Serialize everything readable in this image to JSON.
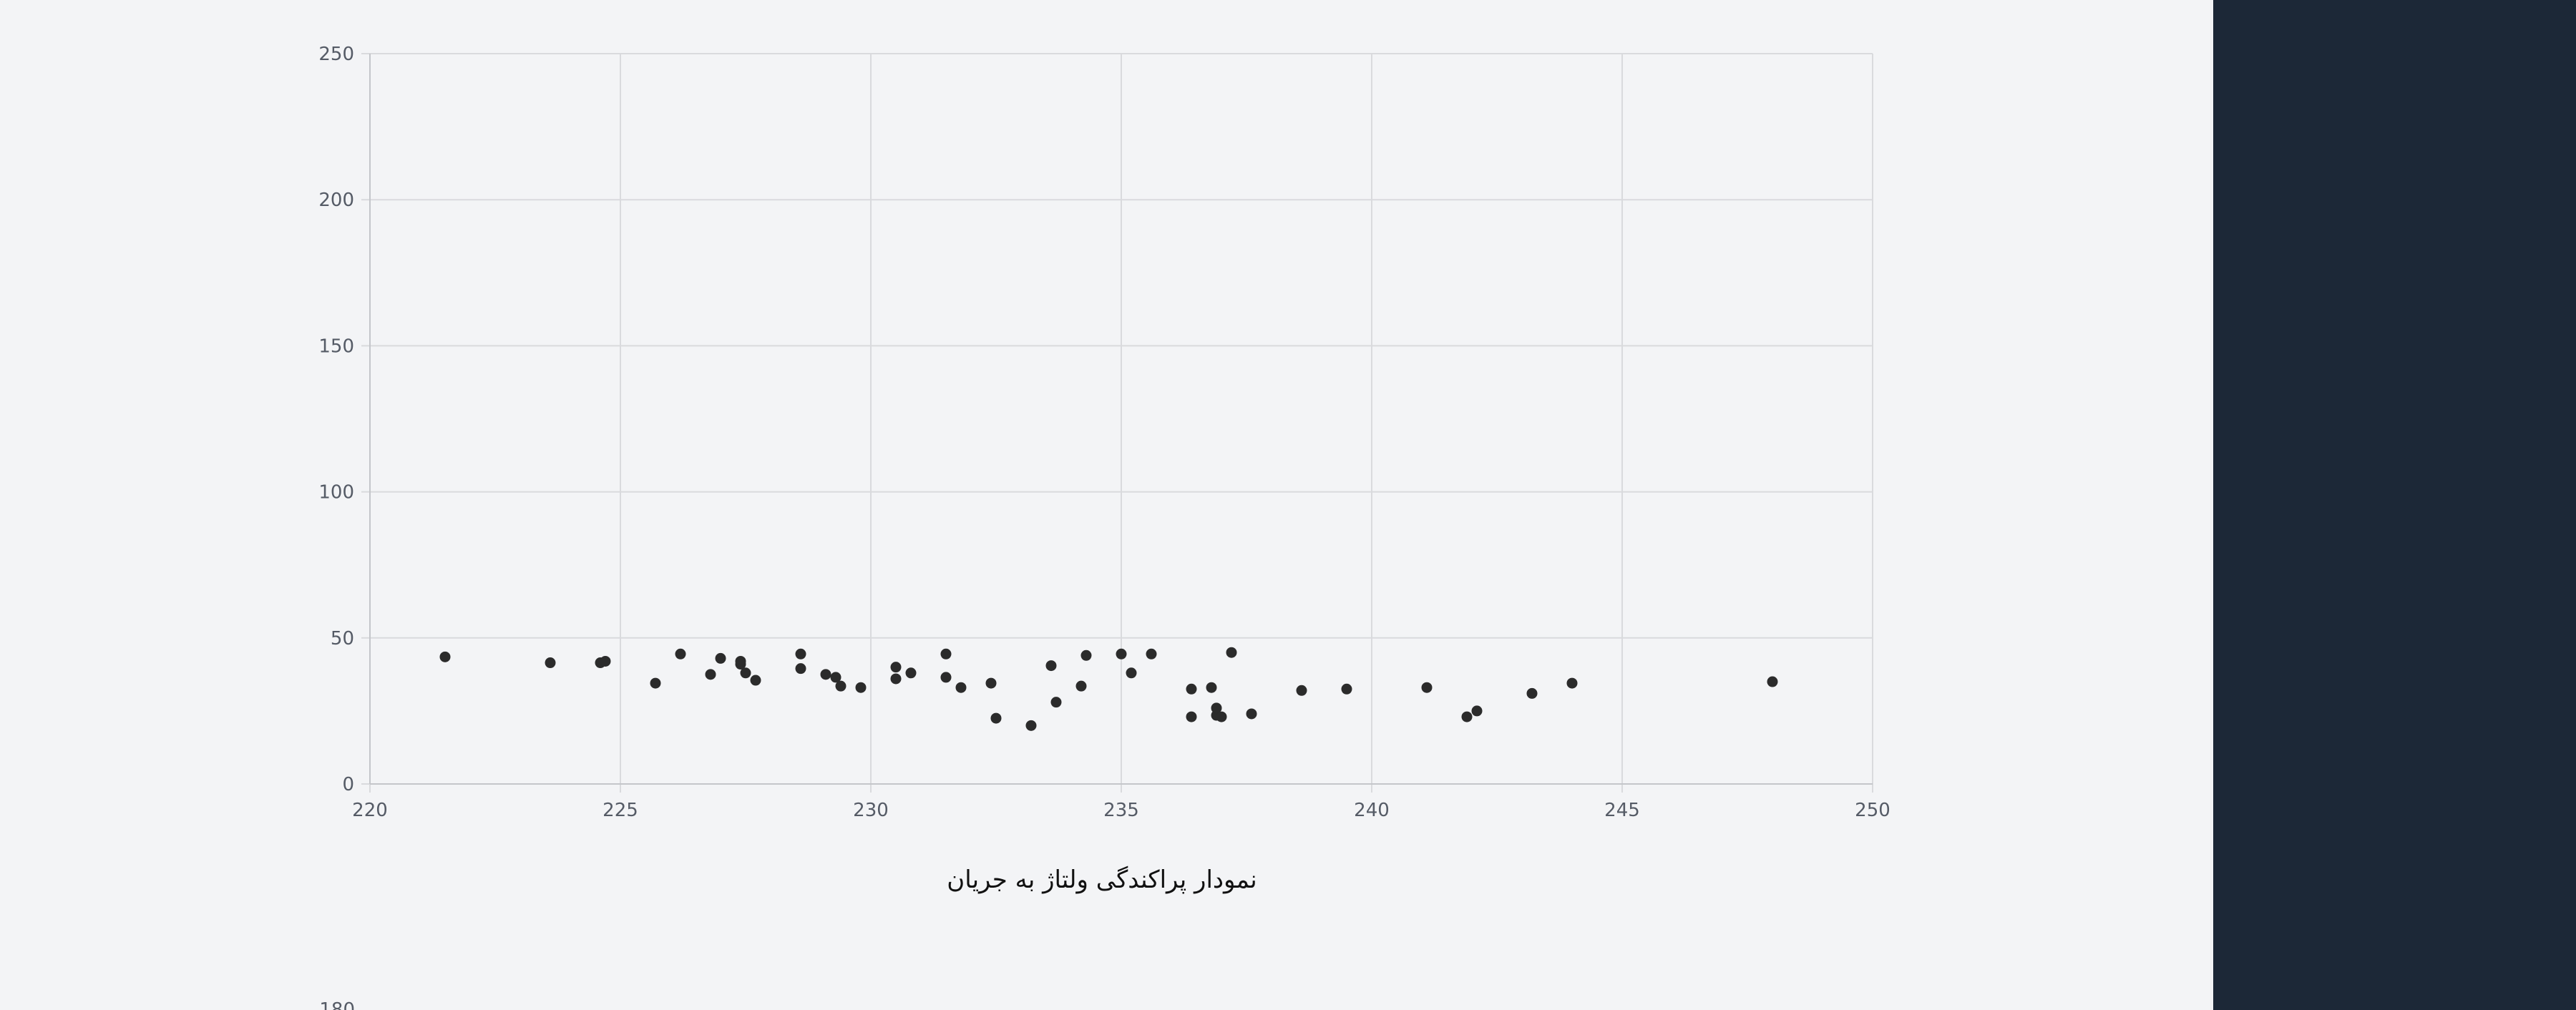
{
  "caption": "نمودار پراکندگی ولتاژ به جریان",
  "next_chart_partial_tick": "180",
  "colors": {
    "background": "#f3f4f6",
    "side_panel": "#1c2837",
    "point": "#2b2b2b",
    "grid": "#d9dadd"
  },
  "chart_data": {
    "type": "scatter",
    "title": "",
    "xlabel": "",
    "ylabel": "",
    "xlim": [
      220,
      250
    ],
    "ylim": [
      0,
      250
    ],
    "x_ticks": [
      220,
      225,
      230,
      235,
      240,
      245,
      250
    ],
    "y_ticks": [
      0,
      50,
      100,
      150,
      200,
      250
    ],
    "grid": true,
    "legend": "none",
    "series": [
      {
        "points": [
          [
            221.5,
            43.5
          ],
          [
            223.6,
            41.5
          ],
          [
            224.6,
            41.5
          ],
          [
            224.7,
            42.0
          ],
          [
            225.7,
            34.5
          ],
          [
            226.2,
            44.5
          ],
          [
            226.8,
            37.5
          ],
          [
            227.0,
            43.0
          ],
          [
            227.4,
            41.0
          ],
          [
            227.4,
            42.0
          ],
          [
            227.5,
            38.0
          ],
          [
            227.7,
            35.5
          ],
          [
            228.6,
            44.5
          ],
          [
            228.6,
            39.5
          ],
          [
            229.1,
            37.5
          ],
          [
            229.3,
            36.5
          ],
          [
            229.4,
            33.5
          ],
          [
            229.8,
            33.0
          ],
          [
            230.5,
            36.0
          ],
          [
            230.5,
            40.0
          ],
          [
            230.8,
            38.0
          ],
          [
            231.5,
            44.5
          ],
          [
            231.5,
            36.5
          ],
          [
            231.8,
            33.0
          ],
          [
            232.4,
            34.5
          ],
          [
            232.5,
            22.5
          ],
          [
            233.2,
            20.0
          ],
          [
            233.6,
            40.5
          ],
          [
            233.7,
            28.0
          ],
          [
            234.2,
            33.5
          ],
          [
            234.3,
            44.0
          ],
          [
            235.0,
            44.5
          ],
          [
            235.2,
            38.0
          ],
          [
            235.6,
            44.5
          ],
          [
            236.4,
            32.5
          ],
          [
            236.4,
            23.0
          ],
          [
            236.8,
            33.0
          ],
          [
            236.9,
            23.5
          ],
          [
            236.9,
            26.0
          ],
          [
            237.0,
            23.0
          ],
          [
            237.2,
            45.0
          ],
          [
            237.6,
            24.0
          ],
          [
            238.6,
            32.0
          ],
          [
            239.5,
            32.5
          ],
          [
            241.1,
            33.0
          ],
          [
            241.9,
            23.0
          ],
          [
            242.1,
            25.0
          ],
          [
            243.2,
            31.0
          ],
          [
            244.0,
            34.5
          ],
          [
            248.0,
            35.0
          ]
        ]
      }
    ]
  }
}
